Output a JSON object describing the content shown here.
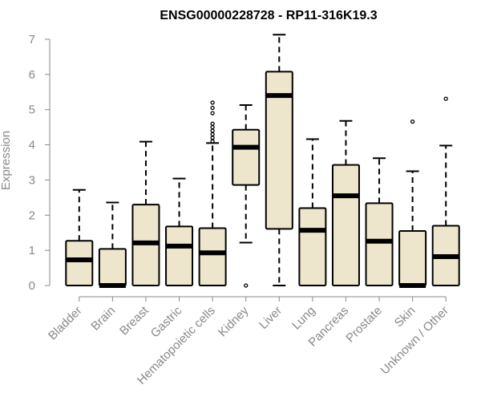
{
  "chart_data": {
    "type": "boxplot",
    "title": "ENSG00000228728 - RP11-316K19.3",
    "xlabel": "",
    "ylabel": "Expression",
    "ylim": [
      0,
      7
    ],
    "yticks": [
      0,
      1,
      2,
      3,
      4,
      5,
      6,
      7
    ],
    "grid": false,
    "legend": "none",
    "box_fill": "#ede6cc",
    "box_stroke": "#000000",
    "outlier_symbol": "open-circle",
    "categories": [
      "Bladder",
      "Brain",
      "Breast",
      "Gastric",
      "Hematopoietic cells",
      "Kidney",
      "Liver",
      "Lung",
      "Pancreas",
      "Prostate",
      "Skin",
      "Unknown / Other"
    ],
    "boxes": [
      {
        "category": "Bladder",
        "min": 0,
        "q1": 0,
        "median": 0.73,
        "q3": 1.27,
        "max": 2.72,
        "outliers": []
      },
      {
        "category": "Brain",
        "min": 0,
        "q1": 0,
        "median": 0,
        "q3": 1.04,
        "max": 2.36,
        "outliers": []
      },
      {
        "category": "Breast",
        "min": 0,
        "q1": 0,
        "median": 1.21,
        "q3": 2.3,
        "max": 4.09,
        "outliers": []
      },
      {
        "category": "Gastric",
        "min": 0,
        "q1": 0,
        "median": 1.12,
        "q3": 1.68,
        "max": 3.04,
        "outliers": []
      },
      {
        "category": "Hematopoietic cells",
        "min": 0,
        "q1": 0,
        "median": 0.93,
        "q3": 1.63,
        "max": 4.05,
        "outliers": [
          4.1,
          4.2,
          4.3,
          4.4,
          4.5,
          4.6,
          4.9,
          5.05,
          5.2
        ]
      },
      {
        "category": "Kidney",
        "min": 1.22,
        "q1": 2.86,
        "median": 3.93,
        "q3": 4.43,
        "max": 5.13,
        "outliers": [
          0
        ]
      },
      {
        "category": "Liver",
        "min": 0,
        "q1": 1.61,
        "median": 5.4,
        "q3": 6.08,
        "max": 7.13,
        "outliers": []
      },
      {
        "category": "Lung",
        "min": 0,
        "q1": 0,
        "median": 1.57,
        "q3": 2.2,
        "max": 4.16,
        "outliers": []
      },
      {
        "category": "Pancreas",
        "min": 0,
        "q1": 0,
        "median": 2.55,
        "q3": 3.43,
        "max": 4.68,
        "outliers": []
      },
      {
        "category": "Prostate",
        "min": 0,
        "q1": 0,
        "median": 1.26,
        "q3": 2.34,
        "max": 3.62,
        "outliers": []
      },
      {
        "category": "Skin",
        "min": 0,
        "q1": 0,
        "median": 0,
        "q3": 1.55,
        "max": 3.25,
        "outliers": [
          4.66
        ]
      },
      {
        "category": "Unknown / Other",
        "min": 0,
        "q1": 0,
        "median": 0.82,
        "q3": 1.7,
        "max": 3.98,
        "outliers": [
          5.31
        ]
      }
    ]
  }
}
